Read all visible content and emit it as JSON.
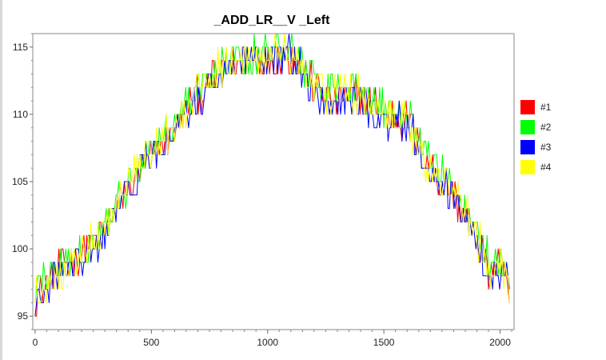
{
  "chart_data": {
    "type": "line",
    "title": "_ADD_LR__V _Left",
    "xlabel": "",
    "ylabel": "",
    "xlim": [
      -10,
      2060
    ],
    "ylim": [
      94,
      116
    ],
    "xticks": [
      0,
      500,
      1000,
      1500,
      2000
    ],
    "xtick_labels": [
      "0",
      "500",
      "1000",
      "1500",
      "2000"
    ],
    "yticks": [
      95,
      100,
      105,
      110,
      115
    ],
    "ytick_labels": [
      "95",
      "100",
      "105",
      "110",
      "115"
    ],
    "grid": false,
    "legend_position": "right",
    "trend_x": [
      0,
      100,
      200,
      300,
      400,
      500,
      600,
      700,
      800,
      900,
      1000,
      1100,
      1200,
      1300,
      1400,
      1500,
      1600,
      1700,
      1800,
      1900,
      1950,
      2000,
      2030,
      2045
    ],
    "series": [
      {
        "name": "#1",
        "color": "#ff0000",
        "trend": [
          96.5,
          98.5,
          99.5,
          101.5,
          104.5,
          107,
          109,
          111.5,
          113,
          114,
          114,
          114.5,
          112,
          111,
          111.5,
          110,
          109.5,
          106,
          104,
          101,
          98.5,
          98.5,
          98.5,
          94
        ]
      },
      {
        "name": "#2",
        "color": "#00ff00",
        "trend": [
          97,
          98.5,
          99.5,
          102,
          105,
          107.5,
          109.5,
          112,
          113.5,
          114.5,
          114.5,
          115,
          112.5,
          112,
          112,
          110.5,
          110,
          106.5,
          104.5,
          101.5,
          99,
          99,
          99,
          95
        ]
      },
      {
        "name": "#3",
        "color": "#0000ff",
        "trend": [
          96,
          98,
          99,
          101,
          104.5,
          107,
          108.5,
          111,
          113,
          114,
          114,
          114.5,
          111.5,
          111,
          111,
          109.5,
          109.5,
          105.5,
          104,
          100.5,
          98,
          98,
          98,
          94.5
        ]
      },
      {
        "name": "#4",
        "color": "#ffff00",
        "trend": [
          96.5,
          98,
          99.5,
          101.5,
          105,
          107.5,
          109,
          112,
          113.5,
          114,
          114.5,
          114.5,
          112,
          111.5,
          111.5,
          110,
          109.5,
          106,
          104.5,
          101,
          98.5,
          98.5,
          98.5,
          94
        ]
      }
    ]
  }
}
